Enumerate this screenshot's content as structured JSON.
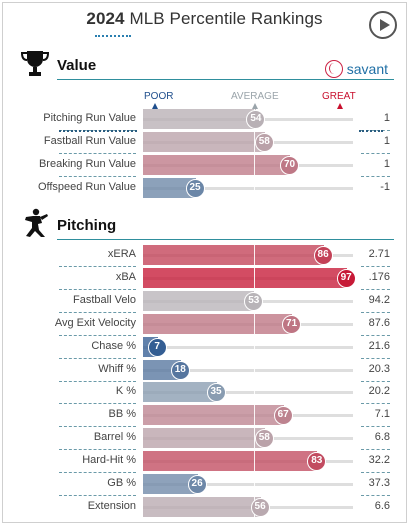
{
  "header": {
    "year": "2024",
    "title": "MLB Percentile Rankings"
  },
  "scale": {
    "poor": "POOR",
    "average": "AVERAGE",
    "great": "GREAT",
    "poor_color": "#1f4e8c",
    "average_color": "#9aa4aa",
    "great_color": "#c8102e"
  },
  "value_section": {
    "title": "Value",
    "brand": "savant",
    "rows": [
      {
        "name": "Pitching Run Value",
        "percentile": 54,
        "value": "1"
      },
      {
        "name": "Fastball Run Value",
        "percentile": 58,
        "value": "1"
      },
      {
        "name": "Breaking Run Value",
        "percentile": 70,
        "value": "1"
      },
      {
        "name": "Offspeed Run Value",
        "percentile": 25,
        "value": "-1"
      }
    ]
  },
  "pitching_section": {
    "title": "Pitching",
    "rows": [
      {
        "name": "xERA",
        "percentile": 86,
        "value": "2.71"
      },
      {
        "name": "xBA",
        "percentile": 97,
        "value": ".176"
      },
      {
        "name": "Fastball Velo",
        "percentile": 53,
        "value": "94.2"
      },
      {
        "name": "Avg Exit Velocity",
        "percentile": 71,
        "value": "87.6"
      },
      {
        "name": "Chase %",
        "percentile": 7,
        "value": "21.6"
      },
      {
        "name": "Whiff %",
        "percentile": 18,
        "value": "20.3"
      },
      {
        "name": "K %",
        "percentile": 35,
        "value": "20.2"
      },
      {
        "name": "BB %",
        "percentile": 67,
        "value": "7.1"
      },
      {
        "name": "Barrel %",
        "percentile": 58,
        "value": "6.8"
      },
      {
        "name": "Hard-Hit %",
        "percentile": 83,
        "value": "32.2"
      },
      {
        "name": "GB %",
        "percentile": 26,
        "value": "37.3"
      },
      {
        "name": "Extension",
        "percentile": 56,
        "value": "6.6"
      }
    ]
  }
}
